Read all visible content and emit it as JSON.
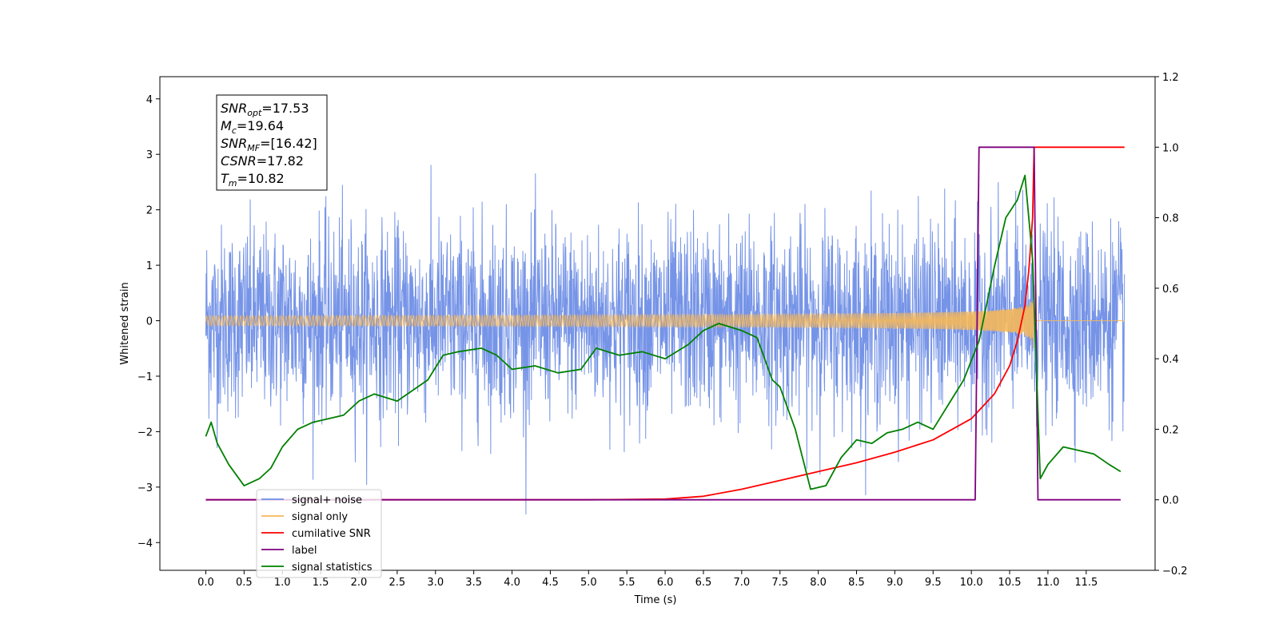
{
  "chart_data": {
    "type": "line",
    "xlabel": "Time (s)",
    "ylabel": "Whitened strain",
    "xlim": [
      -0.6,
      12.4
    ],
    "ylim": [
      -4.5,
      4.4
    ],
    "y2lim": [
      -0.2,
      1.2
    ],
    "x_ticks": [
      "0.0",
      "0.5",
      "1.0",
      "1.5",
      "2.0",
      "2.5",
      "3.0",
      "3.5",
      "4.0",
      "4.5",
      "5.0",
      "5.5",
      "6.0",
      "6.5",
      "7.0",
      "7.5",
      "8.0",
      "8.5",
      "9.0",
      "9.5",
      "10.0",
      "10.5",
      "11.0",
      "11.5"
    ],
    "y_ticks": [
      "4",
      "3",
      "2",
      "1",
      "0",
      "−1",
      "−2",
      "−3",
      "−4"
    ],
    "y2_ticks": [
      "1.2",
      "1.0",
      "0.8",
      "0.6",
      "0.4",
      "0.2",
      "0.0",
      "−0.2"
    ],
    "grid": false,
    "legend_position": "lower-left",
    "annotation": [
      {
        "sym": "SNR",
        "sub": "opt",
        "value": "=17.53"
      },
      {
        "sym": "M",
        "sub": "c",
        "value": "=19.64"
      },
      {
        "sym": "SNR",
        "sub": "MF",
        "value": "=[16.42]"
      },
      {
        "sym": "CSNR",
        "sub": "",
        "value": "=17.82"
      },
      {
        "sym": "T",
        "sub": "m",
        "value": "=10.82"
      }
    ],
    "series": [
      {
        "name": "signal+ noise",
        "color": "#6f8ee6",
        "axis": "left",
        "noise_std": 0.85,
        "x_range": [
          0.0,
          12.0
        ]
      },
      {
        "name": "signal only",
        "color": "#f5b75a",
        "axis": "left",
        "x_range": [
          0.0,
          12.0
        ],
        "merger_time": 10.82
      },
      {
        "name": "cumilative SNR",
        "color": "#ff0000",
        "axis": "right",
        "x": [
          0.0,
          5.0,
          6.0,
          6.5,
          7.0,
          7.5,
          8.0,
          8.5,
          9.0,
          9.5,
          10.0,
          10.3,
          10.5,
          10.6,
          10.7,
          10.75,
          10.8,
          10.82,
          12.0
        ],
        "y": [
          0.0,
          0.0,
          0.002,
          0.01,
          0.03,
          0.055,
          0.08,
          0.105,
          0.135,
          0.17,
          0.23,
          0.3,
          0.38,
          0.45,
          0.55,
          0.65,
          0.8,
          1.0,
          1.0
        ]
      },
      {
        "name": "label",
        "color": "#800080",
        "axis": "right",
        "x": [
          0.0,
          10.05,
          10.1,
          10.82,
          10.87,
          11.95
        ],
        "y": [
          0.0,
          0.0,
          1.0,
          1.0,
          0.0,
          0.0
        ]
      },
      {
        "name": "signal statistics",
        "color": "#008000",
        "axis": "right",
        "x": [
          0.0,
          0.07,
          0.15,
          0.3,
          0.5,
          0.7,
          0.85,
          1.0,
          1.2,
          1.4,
          1.6,
          1.8,
          2.0,
          2.2,
          2.5,
          2.7,
          2.9,
          3.1,
          3.3,
          3.6,
          3.8,
          4.0,
          4.3,
          4.6,
          4.9,
          5.1,
          5.4,
          5.7,
          6.0,
          6.3,
          6.5,
          6.7,
          6.85,
          7.0,
          7.2,
          7.4,
          7.5,
          7.7,
          7.9,
          8.1,
          8.3,
          8.5,
          8.7,
          8.9,
          9.1,
          9.3,
          9.5,
          9.7,
          9.9,
          10.1,
          10.3,
          10.45,
          10.6,
          10.7,
          10.8,
          10.9,
          11.0,
          11.2,
          11.4,
          11.6,
          11.8,
          11.95
        ],
        "y": [
          0.18,
          0.22,
          0.16,
          0.1,
          0.04,
          0.06,
          0.09,
          0.15,
          0.2,
          0.22,
          0.23,
          0.24,
          0.28,
          0.3,
          0.28,
          0.31,
          0.34,
          0.41,
          0.42,
          0.43,
          0.41,
          0.37,
          0.38,
          0.36,
          0.37,
          0.43,
          0.41,
          0.42,
          0.4,
          0.44,
          0.48,
          0.5,
          0.49,
          0.48,
          0.46,
          0.34,
          0.32,
          0.2,
          0.03,
          0.04,
          0.12,
          0.17,
          0.16,
          0.19,
          0.2,
          0.22,
          0.2,
          0.27,
          0.34,
          0.45,
          0.66,
          0.8,
          0.85,
          0.92,
          0.68,
          0.06,
          0.1,
          0.15,
          0.14,
          0.13,
          0.1,
          0.08
        ]
      }
    ]
  }
}
